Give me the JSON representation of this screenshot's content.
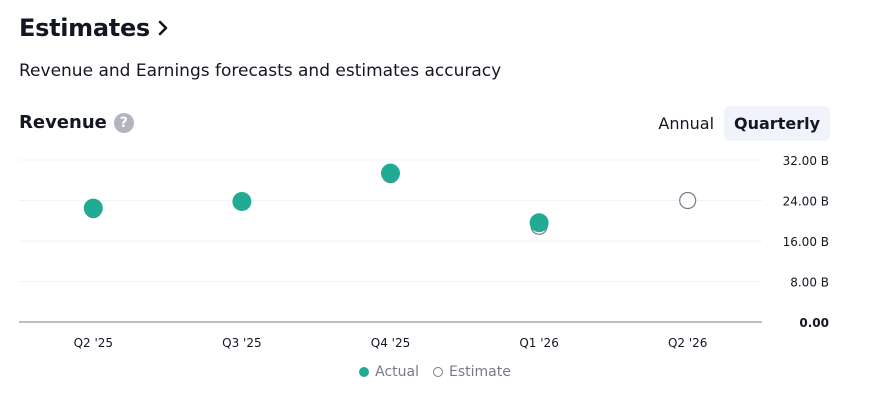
{
  "header": {
    "title": "Estimates",
    "chevron_icon": "chevron-right-icon"
  },
  "subtitle": "Revenue and Earnings forecasts and estimates accuracy",
  "section": {
    "label": "Revenue",
    "help_icon": "question-circle-icon",
    "help_glyph": "?"
  },
  "toggle": {
    "annual_label": "Annual",
    "quarterly_label": "Quarterly",
    "selected": "Quarterly"
  },
  "colors": {
    "actual": "#22ab94",
    "estimate_stroke": "#787b86",
    "grid": "#f0f3fa",
    "axis": "#787b86"
  },
  "chart_data": {
    "type": "scatter",
    "categories": [
      "Q2 '25",
      "Q3 '25",
      "Q4 '25",
      "Q1 '26",
      "Q2 '26"
    ],
    "series": [
      {
        "name": "Actual",
        "values": [
          22.5,
          23.8,
          29.4,
          19.6,
          null
        ]
      },
      {
        "name": "Estimate",
        "values": [
          22.2,
          23.8,
          29.1,
          18.9,
          24.0
        ]
      }
    ],
    "ylim": [
      0,
      32
    ],
    "yticks": [
      0,
      8,
      16,
      24,
      32
    ],
    "ytick_labels": [
      "0.00",
      "8.00 B",
      "16.00 B",
      "24.00 B",
      "32.00 B"
    ],
    "legend": {
      "actual_label": "Actual",
      "estimate_label": "Estimate",
      "position": "bottom-center"
    },
    "grid": true
  }
}
